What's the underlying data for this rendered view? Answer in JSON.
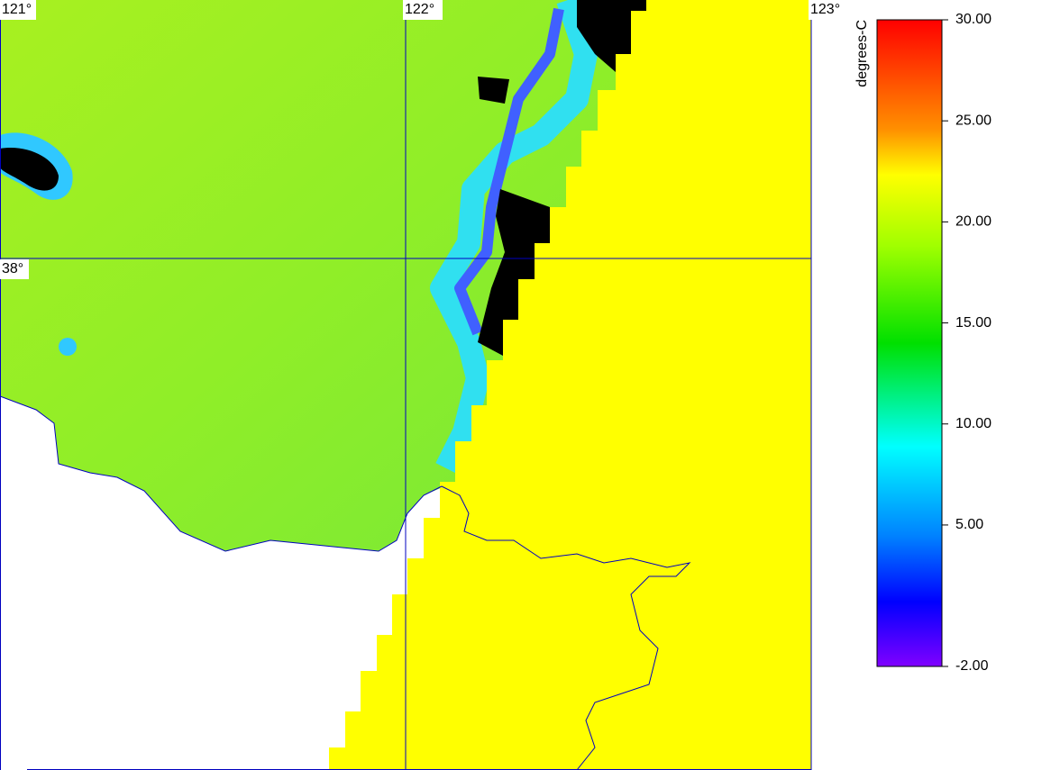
{
  "map": {
    "grid_labels": {
      "lon": [
        "121°",
        "122°",
        "123°"
      ],
      "lat": [
        "38°"
      ]
    },
    "colorbar": {
      "label": "degrees-C",
      "range": [
        -2,
        30
      ],
      "ticks": [
        {
          "value": 30,
          "label": "30.00"
        },
        {
          "value": 25,
          "label": "25.00"
        },
        {
          "value": 20,
          "label": "20.00"
        },
        {
          "value": 15,
          "label": "15.00"
        },
        {
          "value": 10,
          "label": "10.00"
        },
        {
          "value": 5,
          "label": "5.00"
        },
        {
          "value": -2,
          "label": "-2.00"
        }
      ]
    }
  }
}
